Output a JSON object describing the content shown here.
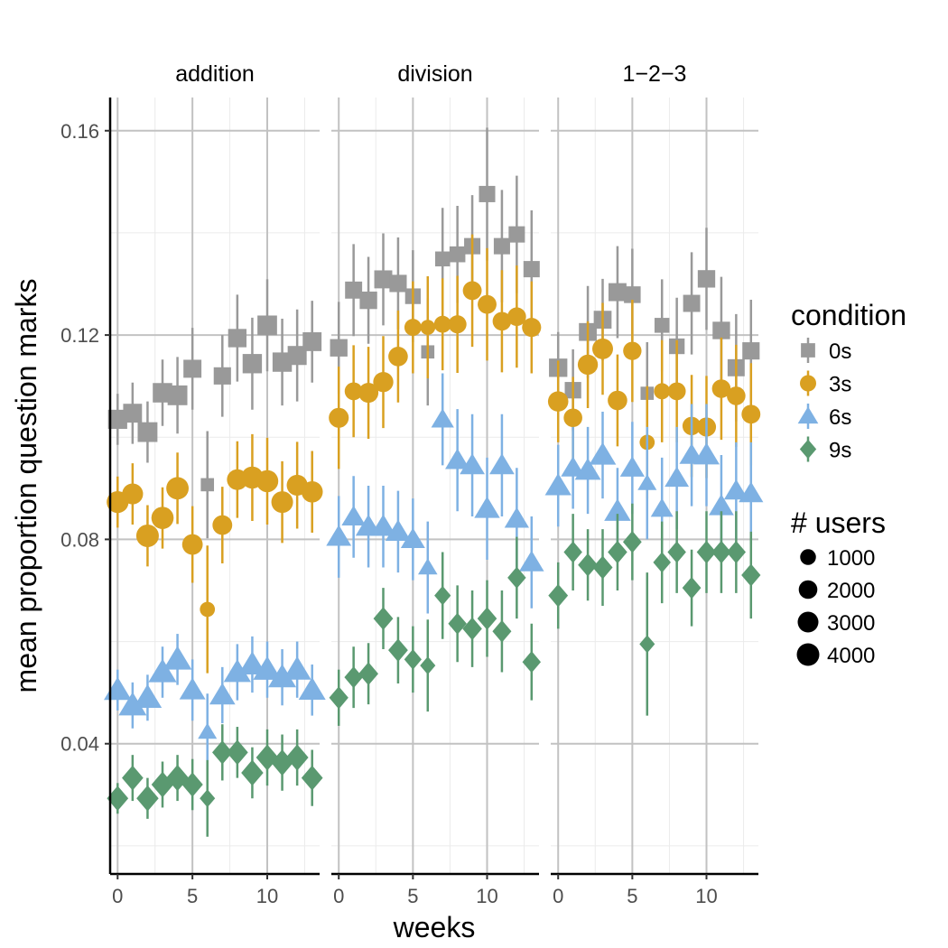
{
  "chart_data": {
    "type": "scatter",
    "xlabel": "weeks",
    "ylabel": "mean proportion question marks",
    "xlim": [
      -0.5,
      13.5
    ],
    "ylim": [
      0.0145,
      0.1665
    ],
    "x_ticks": [
      0,
      5,
      10
    ],
    "y_ticks": [
      0.04,
      0.08,
      0.12,
      0.16
    ],
    "y_tick_labels": [
      "0.04",
      "0.08",
      "0.12",
      "0.16"
    ],
    "grid": true,
    "legend_placement": "right",
    "legend": {
      "condition_title": "condition",
      "conditions": [
        {
          "name": "0s",
          "color": "#999999",
          "shape": "square"
        },
        {
          "name": "3s",
          "color": "#D9A021",
          "shape": "circle"
        },
        {
          "name": "6s",
          "color": "#7EB1E3",
          "shape": "triangle"
        },
        {
          "name": "9s",
          "color": "#5A9970",
          "shape": "diamond"
        }
      ],
      "users_title": "# users",
      "users": [
        {
          "label": "1000",
          "value": 1000
        },
        {
          "label": "2000",
          "value": 2000
        },
        {
          "label": "3000",
          "value": 3000
        },
        {
          "label": "4000",
          "value": 4000
        }
      ]
    },
    "panels": [
      {
        "title": "addition",
        "series": [
          {
            "name": "0s",
            "x": [
              0,
              1,
              2,
              3,
              4,
              5,
              6,
              7,
              8,
              9,
              10,
              11,
              12,
              13
            ],
            "y": [
              0.1035,
              0.1047,
              0.101,
              0.1087,
              0.1082,
              0.1134,
              0.0907,
              0.112,
              0.1194,
              0.1144,
              0.1219,
              0.1147,
              0.116,
              0.1187
            ],
            "err": [
              0.005,
              0.006,
              0.006,
              0.0065,
              0.0075,
              0.008,
              0.0105,
              0.008,
              0.0085,
              0.009,
              0.009,
              0.0085,
              0.009,
              0.008
            ],
            "n": [
              3600,
              3400,
              4000,
              3800,
              4000,
              2900,
              800,
              2500,
              3100,
              3700,
              3900,
              3700,
              3500,
              3400
            ]
          },
          {
            "name": "3s",
            "x": [
              0,
              1,
              2,
              3,
              4,
              5,
              6,
              7,
              8,
              9,
              10,
              11,
              12,
              13
            ],
            "y": [
              0.0873,
              0.0889,
              0.0807,
              0.0842,
              0.09,
              0.079,
              0.0663,
              0.0828,
              0.0917,
              0.0921,
              0.0914,
              0.0873,
              0.0906,
              0.0893
            ],
            "err": [
              0.005,
              0.006,
              0.006,
              0.006,
              0.007,
              0.0075,
              0.0125,
              0.0075,
              0.0075,
              0.0085,
              0.0085,
              0.008,
              0.0085,
              0.008
            ],
            "n": [
              3600,
              3100,
              4000,
              3800,
              3900,
              2900,
              800,
              2500,
              3000,
              3700,
              3700,
              3500,
              3100,
              3300
            ]
          },
          {
            "name": "6s",
            "x": [
              0,
              1,
              2,
              3,
              4,
              5,
              6,
              7,
              8,
              9,
              10,
              11,
              12,
              13
            ],
            "y": [
              0.0505,
              0.0475,
              0.049,
              0.054,
              0.0565,
              0.0505,
              0.0423,
              0.0495,
              0.054,
              0.0555,
              0.0545,
              0.053,
              0.0545,
              0.0505
            ],
            "err": [
              0.004,
              0.0045,
              0.0045,
              0.005,
              0.005,
              0.006,
              0.0075,
              0.0055,
              0.0055,
              0.0055,
              0.0055,
              0.0055,
              0.0055,
              0.005
            ],
            "n": [
              3600,
              3800,
              4000,
              3900,
              4000,
              3000,
              800,
              2900,
              3500,
              3700,
              3900,
              3800,
              3800,
              3400
            ]
          },
          {
            "name": "9s",
            "x": [
              0,
              1,
              2,
              3,
              4,
              5,
              6,
              7,
              8,
              9,
              10,
              11,
              12,
              13
            ],
            "y": [
              0.0293,
              0.0333,
              0.0293,
              0.032,
              0.0333,
              0.032,
              0.0293,
              0.0383,
              0.0383,
              0.0343,
              0.0373,
              0.0363,
              0.0373,
              0.0333
            ],
            "err": [
              0.003,
              0.0045,
              0.004,
              0.0045,
              0.0045,
              0.005,
              0.0075,
              0.0055,
              0.005,
              0.005,
              0.0055,
              0.0055,
              0.0055,
              0.0055
            ],
            "n": [
              3100,
              3100,
              3500,
              3500,
              3700,
              2900,
              800,
              2600,
              3100,
              3500,
              3600,
              3600,
              3700,
              3100
            ]
          }
        ]
      },
      {
        "title": "division",
        "series": [
          {
            "name": "0s",
            "x": [
              0,
              1,
              2,
              3,
              4,
              5,
              6,
              7,
              8,
              9,
              10,
              11,
              12,
              13
            ],
            "y": [
              0.1175,
              0.1288,
              0.1268,
              0.1309,
              0.1301,
              0.1276,
              0.1167,
              0.1349,
              0.1358,
              0.1374,
              0.1476,
              0.1374,
              0.1397,
              0.1329
            ],
            "err": [
              0.009,
              0.009,
              0.0085,
              0.009,
              0.009,
              0.009,
              0.0105,
              0.01,
              0.0095,
              0.01,
              0.013,
              0.011,
              0.0115,
              0.0115
            ],
            "n": [
              2600,
              2400,
              2600,
              2900,
              2500,
              1700,
              800,
              1400,
              1800,
              2000,
              2000,
              2000,
              2000,
              2000
            ]
          },
          {
            "name": "3s",
            "x": [
              0,
              1,
              2,
              3,
              4,
              5,
              6,
              7,
              8,
              9,
              10,
              11,
              12,
              13
            ],
            "y": [
              0.1038,
              0.109,
              0.1087,
              0.1108,
              0.1158,
              0.1215,
              0.1215,
              0.1221,
              0.1221,
              0.1287,
              0.126,
              0.1227,
              0.1236,
              0.1215
            ],
            "err": [
              0.01,
              0.009,
              0.009,
              0.009,
              0.009,
              0.009,
              0.01,
              0.009,
              0.0095,
              0.011,
              0.011,
              0.01,
              0.01,
              0.009
            ],
            "n": [
              2600,
              1700,
              2600,
              2700,
              2400,
              1400,
              800,
              1400,
              1800,
              2100,
              2100,
              2000,
              2000,
              2200
            ]
          },
          {
            "name": "6s",
            "x": [
              0,
              1,
              2,
              3,
              4,
              5,
              6,
              7,
              8,
              9,
              10,
              11,
              12,
              13
            ],
            "y": [
              0.0805,
              0.0844,
              0.0825,
              0.0825,
              0.0815,
              0.08,
              0.0745,
              0.1035,
              0.0955,
              0.0945,
              0.086,
              0.0945,
              0.084,
              0.0755
            ],
            "err": [
              0.008,
              0.008,
              0.008,
              0.008,
              0.008,
              0.008,
              0.009,
              0.009,
              0.01,
              0.01,
              0.01,
              0.01,
              0.01,
              0.009
            ],
            "n": [
              2600,
              2200,
              2800,
              2900,
              2700,
              2300,
              900,
              1800,
              2400,
              2600,
              2800,
              2600,
              2400,
              2500
            ]
          },
          {
            "name": "9s",
            "x": [
              0,
              1,
              2,
              3,
              4,
              5,
              6,
              7,
              8,
              9,
              10,
              11,
              12,
              13
            ],
            "y": [
              0.049,
              0.053,
              0.0537,
              0.0645,
              0.0583,
              0.0565,
              0.0553,
              0.069,
              0.0635,
              0.0625,
              0.0645,
              0.062,
              0.0725,
              0.056
            ],
            "err": [
              0.0055,
              0.006,
              0.006,
              0.006,
              0.0065,
              0.0065,
              0.009,
              0.0085,
              0.0075,
              0.0075,
              0.0075,
              0.008,
              0.008,
              0.0075
            ],
            "n": [
              2100,
              1800,
              2300,
              2300,
              2300,
              1400,
              800,
              1100,
              1800,
              2200,
              2200,
              2000,
              1800,
              1800
            ]
          }
        ]
      },
      {
        "title": "1−2−3",
        "series": [
          {
            "name": "0s",
            "x": [
              0,
              1,
              2,
              3,
              4,
              5,
              6,
              7,
              8,
              9,
              10,
              11,
              12,
              13
            ],
            "y": [
              0.1136,
              0.1092,
              0.1206,
              0.123,
              0.1284,
              0.1279,
              0.1086,
              0.1219,
              0.1178,
              0.1262,
              0.131,
              0.1209,
              0.1136,
              0.1169
            ],
            "err": [
              0.007,
              0.008,
              0.009,
              0.008,
              0.009,
              0.009,
              0.01,
              0.009,
              0.0095,
              0.01,
              0.01,
              0.0105,
              0.0105,
              0.01
            ],
            "n": [
              3100,
              2100,
              2800,
              2800,
              2900,
              2200,
              800,
              1400,
              1700,
              2400,
              2600,
              2600,
              2400,
              2500
            ]
          },
          {
            "name": "3s",
            "x": [
              0,
              1,
              2,
              3,
              4,
              5,
              6,
              7,
              8,
              9,
              10,
              11,
              12,
              13
            ],
            "y": [
              0.107,
              0.1038,
              0.1142,
              0.1173,
              0.1072,
              0.1169,
              0.099,
              0.109,
              0.109,
              0.1022,
              0.102,
              0.1095,
              0.1081,
              0.1045
            ],
            "err": [
              0.008,
              0.008,
              0.0085,
              0.009,
              0.009,
              0.01,
              0.011,
              0.01,
              0.01,
              0.01,
              0.01,
              0.01,
              0.01,
              0.01
            ],
            "n": [
              2800,
              2000,
              2700,
              3000,
              2400,
              1900,
              800,
              1100,
              1700,
              1900,
              2200,
              2000,
              2000,
              2100
            ]
          },
          {
            "name": "6s",
            "x": [
              0,
              1,
              2,
              3,
              4,
              5,
              6,
              7,
              8,
              9,
              10,
              11,
              12,
              13
            ],
            "y": [
              0.0905,
              0.094,
              0.0935,
              0.0965,
              0.0855,
              0.094,
              0.091,
              0.086,
              0.092,
              0.0965,
              0.0965,
              0.0865,
              0.0895,
              0.089
            ],
            "err": [
              0.008,
              0.008,
              0.0085,
              0.0085,
              0.0085,
              0.009,
              0.011,
              0.01,
              0.01,
              0.01,
              0.01,
              0.01,
              0.0095,
              0.01
            ],
            "n": [
              3100,
              2200,
              3000,
              3300,
              3200,
              2400,
              800,
              1700,
              2300,
              2400,
              3000,
              2600,
              2300,
              2400
            ]
          },
          {
            "name": "9s",
            "x": [
              0,
              1,
              2,
              3,
              4,
              5,
              6,
              7,
              8,
              9,
              10,
              11,
              12,
              13
            ],
            "y": [
              0.069,
              0.0775,
              0.075,
              0.0745,
              0.0775,
              0.0795,
              0.0595,
              0.0755,
              0.0775,
              0.0705,
              0.0775,
              0.0775,
              0.0775,
              0.073
            ],
            "err": [
              0.0065,
              0.0075,
              0.007,
              0.0075,
              0.0075,
              0.0075,
              0.014,
              0.008,
              0.008,
              0.0075,
              0.008,
              0.008,
              0.008,
              0.0085
            ],
            "n": [
              2300,
              1800,
              2300,
              2400,
              2200,
              1900,
              800,
              1500,
              1800,
              1900,
              2200,
              2200,
              2100,
              2100
            ]
          }
        ]
      }
    ]
  }
}
